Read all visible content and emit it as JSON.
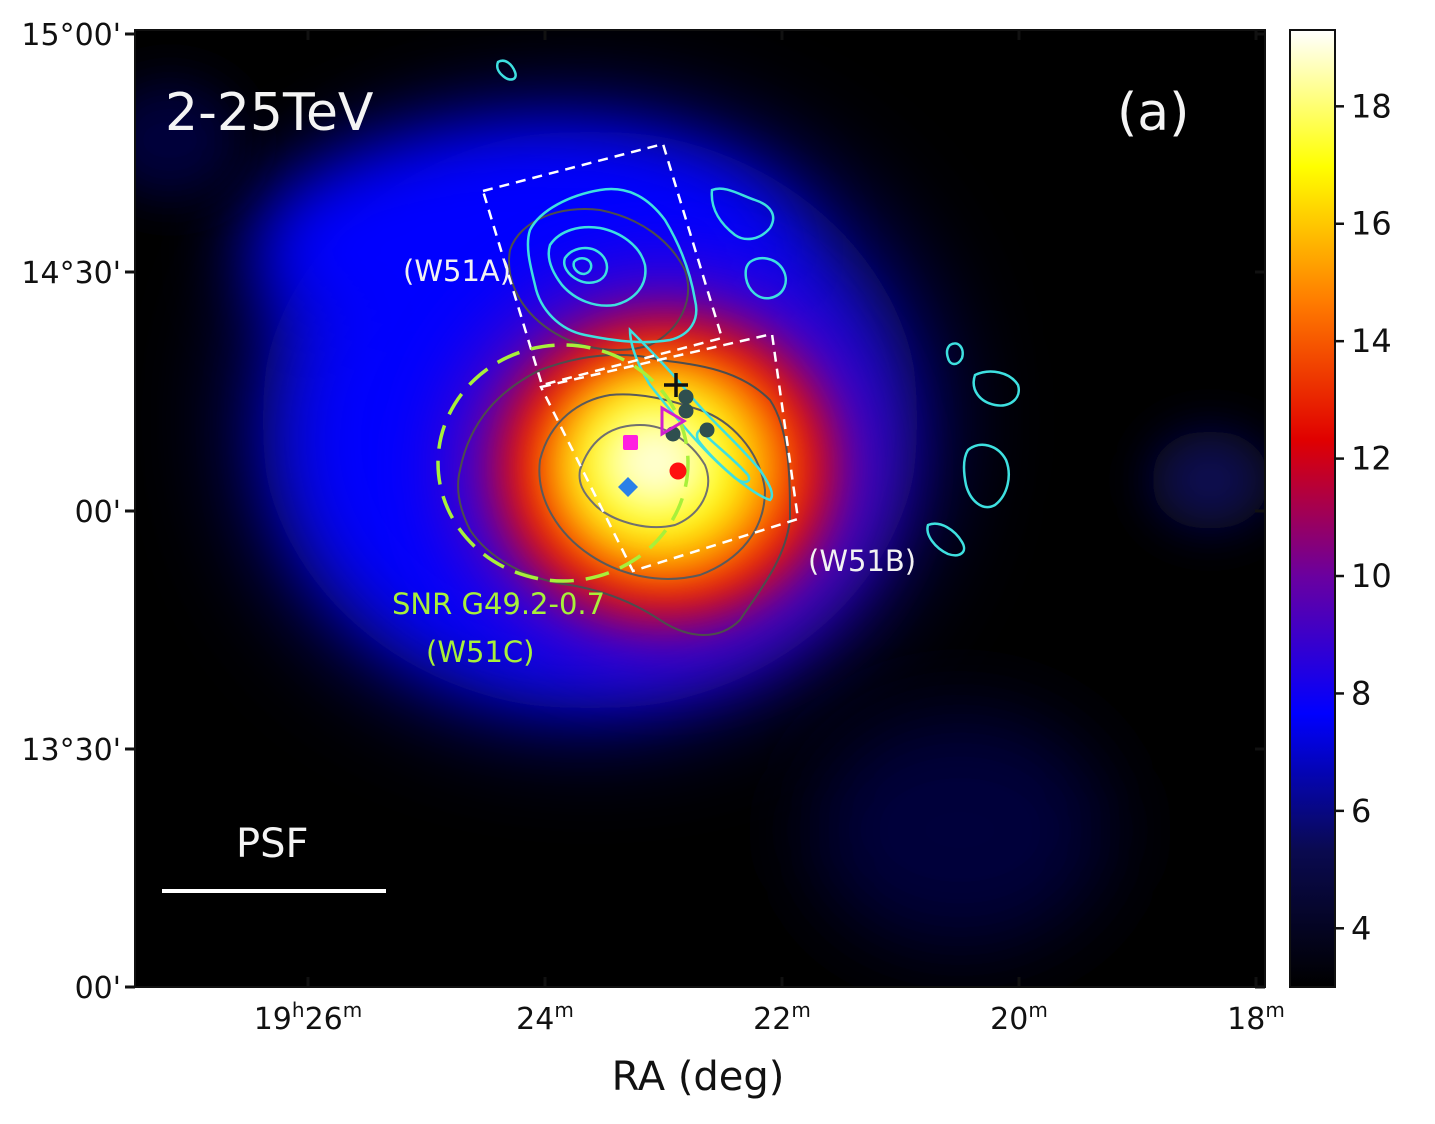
{
  "chart_data": {
    "type": "heatmap",
    "panel_label": "2-25TeV",
    "panel_tag": "(a)",
    "xlabel": "RA (deg)",
    "x_ticks": [
      {
        "main": "19",
        "sup1": "h",
        "rest": "26",
        "sup2": "m"
      },
      {
        "main": "",
        "sup1": "",
        "rest": "24",
        "sup2": "m"
      },
      {
        "main": "",
        "sup1": "",
        "rest": "22",
        "sup2": "m"
      },
      {
        "main": "",
        "sup1": "",
        "rest": "20",
        "sup2": "m"
      },
      {
        "main": "",
        "sup1": "",
        "rest": "18",
        "sup2": "m"
      }
    ],
    "y_ticks": [
      "15°00'",
      "14°30'",
      "00'",
      "13°30'",
      "00'"
    ],
    "colorbar": {
      "range": [
        3,
        19.3
      ],
      "ticks": [
        "4",
        "6",
        "8",
        "10",
        "12",
        "14",
        "16",
        "18"
      ],
      "colormap": [
        "#000000",
        "#0a0a50",
        "#0000ff",
        "#6a00a0",
        "#e00000",
        "#ff7a00",
        "#ffff00",
        "#ffffff"
      ]
    },
    "annotations": {
      "w51a": "(W51A)",
      "w51b": "(W51B)",
      "snr_name": "SNR G49.2-0.7",
      "snr_alias": "(W51C)",
      "psf": "PSF"
    },
    "colors": {
      "contour_cyan": "#3ee0e0",
      "contour_gray": "#555555",
      "snr_green": "#a8f03a",
      "box_white": "#ffffff",
      "marker_magenta_square": "#ff20e0",
      "marker_blue_diamond": "#2a80e8",
      "marker_red_dot": "#ff1010",
      "marker_dark_dots": "#2f4f4f",
      "marker_triangle": "#d020d0"
    }
  }
}
